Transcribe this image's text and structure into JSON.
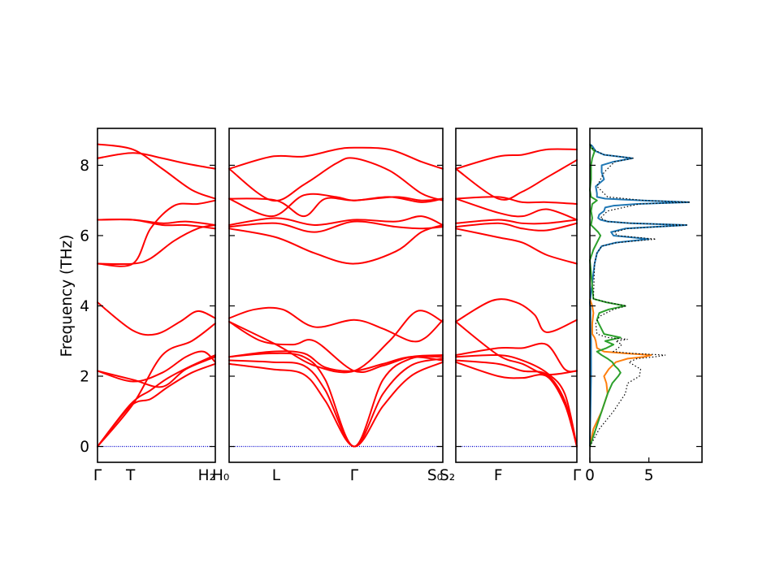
{
  "chart_data": {
    "type": "line",
    "title": "",
    "ylabel": "Frequency (THz)",
    "ylim": [
      -0.45,
      9.05
    ],
    "yticks": [
      0,
      2,
      4,
      6,
      8
    ],
    "colors": {
      "bands": "#ff0000",
      "zero_line": "#0000cc",
      "dos_series": [
        "#1f77b4",
        "#ff7f0e",
        "#2ca02c"
      ],
      "dos_total": "#000000"
    },
    "band_panels": [
      {
        "xticks": [
          {
            "label": "Γ",
            "pos": 0.0
          },
          {
            "label": "T",
            "pos": 0.28
          },
          {
            "label": "H₂|H₀",
            "pos": 1.0
          }
        ],
        "branches": [
          {
            "x": [
              0,
              0.28,
              0.45,
              0.6,
              0.8,
              1.0
            ],
            "y": [
              0,
              1.15,
              1.35,
              1.7,
              2.1,
              2.35
            ]
          },
          {
            "x": [
              0,
              0.28,
              0.45,
              0.6,
              0.8,
              1.0
            ],
            "y": [
              0,
              1.2,
              1.6,
              1.95,
              2.3,
              2.6
            ]
          },
          {
            "x": [
              0,
              0.3,
              0.55,
              0.75,
              0.9,
              1.0
            ],
            "y": [
              2.15,
              1.85,
              2.1,
              2.55,
              2.7,
              2.4
            ]
          },
          {
            "x": [
              0,
              0.3,
              0.55,
              0.75,
              1.0
            ],
            "y": [
              2.15,
              1.9,
              1.7,
              2.2,
              2.55
            ]
          },
          {
            "x": [
              0,
              0.3,
              0.55,
              0.8,
              1.0
            ],
            "y": [
              0,
              1.2,
              2.6,
              3.0,
              3.5
            ]
          },
          {
            "x": [
              0,
              0.3,
              0.5,
              0.7,
              0.85,
              1.0
            ],
            "y": [
              4.1,
              3.3,
              3.2,
              3.55,
              3.85,
              3.65
            ]
          },
          {
            "x": [
              0,
              0.3,
              0.45,
              0.65,
              0.85,
              1.0
            ],
            "y": [
              5.2,
              5.2,
              5.35,
              5.85,
              6.2,
              6.3
            ]
          },
          {
            "x": [
              0,
              0.3,
              0.45,
              0.65,
              0.85,
              1.0
            ],
            "y": [
              5.2,
              5.2,
              6.2,
              6.85,
              6.9,
              7.0
            ]
          },
          {
            "x": [
              0,
              0.3,
              0.55,
              0.75,
              1.0
            ],
            "y": [
              6.45,
              6.45,
              6.3,
              6.3,
              6.2
            ]
          },
          {
            "x": [
              0,
              0.3,
              0.55,
              0.75,
              1.0
            ],
            "y": [
              6.45,
              6.45,
              6.35,
              6.4,
              6.3
            ]
          },
          {
            "x": [
              0,
              0.3,
              0.55,
              0.75,
              1.0
            ],
            "y": [
              8.2,
              8.35,
              8.2,
              8.05,
              7.9
            ]
          },
          {
            "x": [
              0,
              0.3,
              0.55,
              0.8,
              1.0
            ],
            "y": [
              8.6,
              8.45,
              7.9,
              7.3,
              7.05
            ]
          }
        ]
      },
      {
        "xticks": [
          {
            "label": "L",
            "pos": 0.22
          },
          {
            "label": "Γ",
            "pos": 0.585
          },
          {
            "label": "S₀|S₂",
            "pos": 1.0
          }
        ],
        "branches": [
          {
            "x": [
              0,
              0.2,
              0.35,
              0.45,
              0.585,
              0.72,
              0.85,
              1.0
            ],
            "y": [
              2.35,
              2.2,
              2.05,
              1.3,
              0,
              1.15,
              2.0,
              2.4
            ]
          },
          {
            "x": [
              0,
              0.2,
              0.35,
              0.45,
              0.585,
              0.72,
              0.85,
              1.0
            ],
            "y": [
              2.45,
              2.4,
              2.3,
              1.6,
              0,
              1.5,
              2.3,
              2.5
            ]
          },
          {
            "x": [
              0,
              0.2,
              0.35,
              0.45,
              0.585,
              0.72,
              0.85,
              1.0
            ],
            "y": [
              2.55,
              2.65,
              2.55,
              1.9,
              0,
              1.9,
              2.5,
              2.55
            ]
          },
          {
            "x": [
              0,
              0.2,
              0.35,
              0.45,
              0.585,
              0.72,
              0.85,
              1.0
            ],
            "y": [
              2.55,
              2.7,
              2.65,
              2.25,
              2.15,
              2.35,
              2.55,
              2.45
            ]
          },
          {
            "x": [
              0,
              0.15,
              0.3,
              0.4,
              0.585,
              0.72,
              0.85,
              1.0
            ],
            "y": [
              3.55,
              3.0,
              2.9,
              3.0,
              2.15,
              2.3,
              2.55,
              2.6
            ]
          },
          {
            "x": [
              0,
              0.12,
              0.25,
              0.4,
              0.585,
              0.72,
              0.85,
              0.92,
              1.0
            ],
            "y": [
              3.65,
              3.9,
              3.9,
              3.4,
              3.6,
              3.35,
              3.0,
              3.1,
              3.6
            ]
          },
          {
            "x": [
              0,
              0.22,
              0.4,
              0.585,
              0.75,
              0.88,
              1.0
            ],
            "y": [
              3.55,
              2.9,
              2.3,
              2.15,
              3.0,
              3.85,
              3.55
            ]
          },
          {
            "x": [
              0,
              0.22,
              0.4,
              0.585,
              0.78,
              0.9,
              1.0
            ],
            "y": [
              6.2,
              5.95,
              5.5,
              5.2,
              5.55,
              6.1,
              6.3
            ]
          },
          {
            "x": [
              0,
              0.22,
              0.4,
              0.585,
              0.78,
              0.9,
              1.0
            ],
            "y": [
              6.25,
              6.35,
              6.1,
              6.4,
              6.25,
              6.2,
              6.25
            ]
          },
          {
            "x": [
              0,
              0.22,
              0.4,
              0.585,
              0.78,
              0.9,
              1.0
            ],
            "y": [
              6.3,
              6.5,
              6.3,
              6.45,
              6.4,
              6.55,
              6.3
            ]
          },
          {
            "x": [
              0,
              0.22,
              0.35,
              0.45,
              0.585,
              0.78,
              0.9,
              1.0
            ],
            "y": [
              7.05,
              7.0,
              6.55,
              7.05,
              7.0,
              7.1,
              7.0,
              7.05
            ]
          },
          {
            "x": [
              0,
              0.2,
              0.35,
              0.5,
              0.585,
              0.75,
              0.9,
              1.0
            ],
            "y": [
              7.05,
              6.55,
              7.15,
              7.1,
              7.0,
              7.1,
              6.95,
              7.05
            ]
          },
          {
            "x": [
              0,
              0.2,
              0.35,
              0.5,
              0.585,
              0.75,
              0.9,
              1.0
            ],
            "y": [
              7.9,
              8.25,
              8.25,
              8.45,
              8.5,
              8.45,
              8.1,
              7.9
            ]
          },
          {
            "x": [
              0,
              0.2,
              0.35,
              0.5,
              0.585,
              0.75,
              0.9,
              1.0
            ],
            "y": [
              7.9,
              7.0,
              7.45,
              8.05,
              8.2,
              7.85,
              7.2,
              7.0
            ]
          }
        ]
      },
      {
        "xticks": [
          {
            "label": "F",
            "pos": 0.35
          },
          {
            "label": "Γ",
            "pos": 1.0
          }
        ],
        "branches": [
          {
            "x": [
              0,
              0.35,
              0.55,
              0.75,
              0.9,
              1.0
            ],
            "y": [
              2.4,
              2.0,
              1.95,
              2.0,
              1.2,
              0
            ]
          },
          {
            "x": [
              0,
              0.35,
              0.55,
              0.75,
              0.9,
              1.0
            ],
            "y": [
              2.45,
              2.35,
              2.15,
              2.05,
              1.3,
              0
            ]
          },
          {
            "x": [
              0,
              0.35,
              0.55,
              0.75,
              0.9,
              1.0
            ],
            "y": [
              2.55,
              2.6,
              2.45,
              2.1,
              1.5,
              0
            ]
          },
          {
            "x": [
              0,
              0.35,
              0.55,
              0.75,
              0.9,
              1.0
            ],
            "y": [
              2.6,
              2.8,
              2.8,
              2.9,
              2.2,
              2.15
            ]
          },
          {
            "x": [
              0,
              0.35,
              0.55,
              0.75,
              1.0
            ],
            "y": [
              3.55,
              2.6,
              2.35,
              2.05,
              2.15
            ]
          },
          {
            "x": [
              0,
              0.3,
              0.5,
              0.65,
              0.75,
              1.0
            ],
            "y": [
              3.55,
              4.15,
              4.1,
              3.75,
              3.25,
              3.6
            ]
          },
          {
            "x": [
              0,
              0.35,
              0.55,
              0.75,
              1.0
            ],
            "y": [
              6.2,
              5.95,
              5.8,
              5.45,
              5.2
            ]
          },
          {
            "x": [
              0,
              0.35,
              0.55,
              0.75,
              1.0
            ],
            "y": [
              6.25,
              6.35,
              6.2,
              6.15,
              6.35
            ]
          },
          {
            "x": [
              0,
              0.35,
              0.55,
              0.75,
              1.0
            ],
            "y": [
              6.35,
              6.45,
              6.35,
              6.35,
              6.45
            ]
          },
          {
            "x": [
              0,
              0.35,
              0.55,
              0.75,
              1.0
            ],
            "y": [
              7.05,
              6.65,
              6.55,
              6.75,
              6.45
            ]
          },
          {
            "x": [
              0,
              0.35,
              0.55,
              0.75,
              1.0
            ],
            "y": [
              7.05,
              7.1,
              6.95,
              6.95,
              6.9
            ]
          },
          {
            "x": [
              0,
              0.35,
              0.55,
              0.75,
              1.0
            ],
            "y": [
              7.9,
              7.05,
              7.25,
              7.65,
              8.15
            ]
          },
          {
            "x": [
              0,
              0.35,
              0.55,
              0.75,
              1.0
            ],
            "y": [
              7.9,
              8.25,
              8.3,
              8.45,
              8.45
            ]
          }
        ]
      }
    ],
    "dos": {
      "xlim": [
        0,
        9.5
      ],
      "xticks": [
        0,
        5
      ],
      "series": [
        {
          "freq": [
            0.0,
            1.0,
            2.0,
            2.6,
            3.0,
            3.5,
            3.9,
            4.1,
            5.2,
            5.5,
            5.7,
            5.8,
            5.9,
            6.0,
            6.1,
            6.2,
            6.3,
            6.35,
            6.4,
            6.45,
            6.5,
            6.6,
            6.7,
            6.8,
            6.85,
            6.9,
            6.95,
            7.0,
            7.05,
            7.1,
            7.2,
            7.4,
            7.6,
            7.8,
            8.0,
            8.1,
            8.2,
            8.3,
            8.4,
            8.55,
            8.6
          ],
          "dos": [
            0.0,
            0.05,
            0.1,
            0.1,
            0.1,
            0.05,
            0.05,
            0.0,
            0.4,
            0.6,
            1.0,
            2.2,
            5.0,
            2.0,
            1.8,
            3.0,
            8.2,
            3.5,
            1.5,
            0.9,
            0.7,
            0.8,
            1.2,
            1.3,
            2.0,
            4.0,
            8.4,
            4.5,
            1.3,
            0.6,
            0.6,
            0.5,
            1.2,
            1.0,
            1.0,
            2.0,
            3.6,
            1.2,
            0.5,
            0.2,
            0.0
          ]
        },
        {
          "freq": [
            0.0,
            0.5,
            1.0,
            1.5,
            1.8,
            2.0,
            2.2,
            2.4,
            2.5,
            2.55,
            2.6,
            2.65,
            2.7,
            2.8,
            3.0,
            3.1,
            3.2,
            3.5,
            3.8,
            4.0,
            4.2
          ],
          "dos": [
            0.0,
            0.3,
            1.0,
            1.5,
            1.4,
            1.2,
            1.6,
            2.2,
            3.2,
            4.6,
            5.2,
            3.0,
            1.2,
            0.6,
            0.5,
            0.4,
            0.2,
            0.2,
            0.3,
            0.2,
            0.0
          ]
        },
        {
          "freq": [
            0.0,
            0.5,
            1.0,
            1.5,
            1.8,
            2.0,
            2.1,
            2.2,
            2.3,
            2.4,
            2.5,
            2.6,
            2.7,
            2.8,
            2.9,
            3.0,
            3.1,
            3.2,
            3.4,
            3.6,
            3.8,
            3.9,
            4.0,
            4.1,
            4.2,
            5.3,
            5.6,
            5.8,
            6.0,
            6.1,
            6.3,
            6.5,
            6.7,
            6.9,
            7.0,
            7.1,
            7.3,
            7.6,
            8.0,
            8.2,
            8.4,
            8.5,
            8.6
          ],
          "dos": [
            0.0,
            0.5,
            1.0,
            1.5,
            1.9,
            2.4,
            2.6,
            2.4,
            2.1,
            1.9,
            1.5,
            1.0,
            0.6,
            1.4,
            2.0,
            1.3,
            2.6,
            1.2,
            0.9,
            0.6,
            0.8,
            1.6,
            3.0,
            1.4,
            0.3,
            0.0,
            0.3,
            0.6,
            0.9,
            0.7,
            0.1,
            0.2,
            0.1,
            0.2,
            0.6,
            0.1,
            0.0,
            0.1,
            0.1,
            0.2,
            0.4,
            0.1,
            0.0
          ]
        },
        {
          "freq": [
            0.0,
            0.5,
            1.0,
            1.5,
            1.8,
            2.0,
            2.2,
            2.4,
            2.5,
            2.55,
            2.6,
            2.65,
            2.7,
            2.8,
            2.9,
            3.0,
            3.05,
            3.1,
            3.2,
            3.5,
            3.7,
            3.9,
            4.0,
            4.1,
            4.2,
            5.2,
            5.5,
            5.7,
            5.8,
            5.9,
            6.0,
            6.1,
            6.2,
            6.3,
            6.35,
            6.4,
            6.5,
            6.7,
            6.9,
            6.95,
            7.0,
            7.1,
            7.4,
            7.8,
            8.1,
            8.2,
            8.3,
            8.45,
            8.6
          ],
          "dos": [
            0.0,
            0.8,
            2.0,
            3.0,
            3.2,
            4.2,
            4.3,
            3.3,
            4.0,
            5.5,
            6.4,
            3.5,
            2.0,
            2.4,
            2.7,
            2.2,
            3.2,
            1.5,
            0.6,
            0.5,
            0.8,
            2.0,
            3.1,
            1.5,
            0.3,
            0.4,
            0.6,
            1.0,
            2.3,
            5.6,
            2.3,
            2.1,
            3.2,
            8.3,
            3.6,
            1.5,
            0.9,
            1.5,
            4.2,
            8.5,
            4.6,
            1.5,
            0.6,
            1.2,
            2.1,
            3.7,
            1.2,
            0.3,
            0.0
          ]
        }
      ]
    }
  }
}
